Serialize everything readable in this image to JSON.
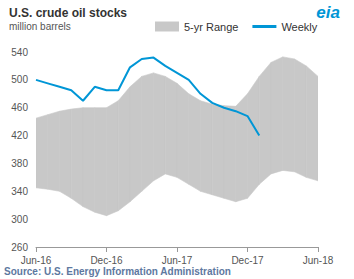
{
  "chart_data": {
    "type": "line",
    "title": "U.S. crude oil stocks",
    "subtitle": "million barrels",
    "categories": [
      "Jun-16",
      null,
      null,
      null,
      null,
      null,
      "Dec-16",
      null,
      null,
      null,
      null,
      null,
      "Jun-17",
      null,
      null,
      null,
      null,
      null,
      "Dec-17",
      null,
      null,
      null,
      null,
      null,
      "Jun-18"
    ],
    "series": [
      {
        "name": "5-yr Range",
        "type": "range",
        "color": "#c8c8c8",
        "low": [
          345,
          343,
          340,
          330,
          318,
          310,
          305,
          312,
          325,
          340,
          355,
          365,
          360,
          350,
          340,
          335,
          330,
          325,
          330,
          350,
          365,
          370,
          368,
          360,
          355
        ],
        "high": [
          445,
          450,
          455,
          458,
          460,
          460,
          460,
          470,
          490,
          505,
          510,
          505,
          495,
          480,
          470,
          465,
          463,
          462,
          480,
          505,
          525,
          533,
          530,
          520,
          505
        ]
      },
      {
        "name": "Weekly",
        "type": "line",
        "color": "#0096d6",
        "values": [
          500,
          495,
          490,
          485,
          470,
          490,
          485,
          485,
          518,
          530,
          532,
          520,
          510,
          500,
          480,
          467,
          460,
          455,
          448,
          420,
          null,
          null,
          null,
          null,
          null
        ]
      }
    ],
    "ylim": [
      260,
      540
    ],
    "yticks": [
      260,
      300,
      340,
      380,
      420,
      460,
      500,
      540
    ],
    "grid": false,
    "annotations": [
      "eia",
      "Source: U.S. Energy Information Administration"
    ]
  }
}
